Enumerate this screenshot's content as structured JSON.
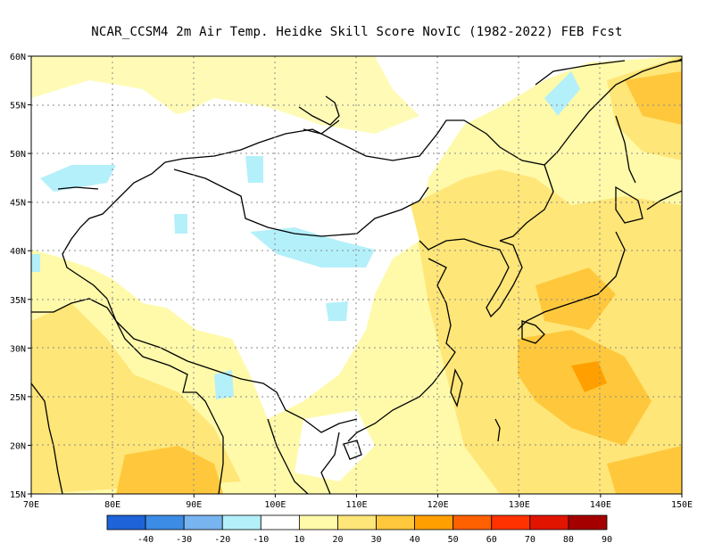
{
  "title": "NCAR_CCSM4  2m Air Temp. Heidke Skill Score NovIC (1982-2022) FEB Fcst",
  "map": {
    "lon_labels": [
      "70E",
      "80E",
      "90E",
      "100E",
      "110E",
      "120E",
      "130E",
      "140E",
      "150E"
    ],
    "lat_labels": [
      "60N",
      "55N",
      "50N",
      "45N",
      "40N",
      "35N",
      "30N",
      "25N",
      "20N",
      "15N"
    ],
    "lon_range": [
      70,
      150
    ],
    "lat_range": [
      15,
      60
    ],
    "gridlines": "dotted"
  },
  "colorbar": {
    "labels": [
      "-40",
      "-30",
      "-20",
      "-10",
      "10",
      "20",
      "30",
      "40",
      "50",
      "60",
      "70",
      "80",
      "90"
    ],
    "colors": [
      "#1e64d8",
      "#3c8ce6",
      "#78b4f0",
      "#b4f0fa",
      "#ffffff",
      "#fffaaa",
      "#ffe678",
      "#ffc83c",
      "#ffa000",
      "#ff6000",
      "#ff3200",
      "#e11400",
      "#a50000"
    ]
  },
  "colors": {
    "coast": "#000000",
    "border": "#000000",
    "grid": "#888888"
  }
}
